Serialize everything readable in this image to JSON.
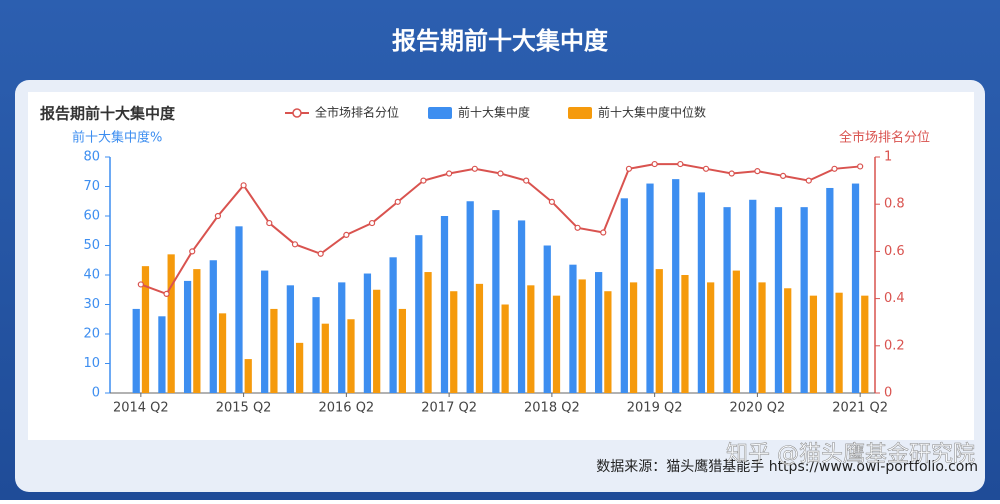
{
  "header": {
    "title": "报告期前十大集中度"
  },
  "chart_data": {
    "type": "bar",
    "title": "报告期前十大集中度",
    "ylabel": "前十大集中度%",
    "y2label": "全市场排名分位",
    "categories": [
      "2014 Q2",
      null,
      null,
      null,
      "2015 Q2",
      null,
      null,
      null,
      "2016 Q2",
      null,
      null,
      null,
      "2017 Q2",
      null,
      null,
      null,
      "2018 Q2",
      null,
      null,
      null,
      "2019 Q2",
      null,
      null,
      null,
      "2020 Q2",
      null,
      null,
      null,
      "2021 Q2"
    ],
    "series": [
      {
        "name": "全市场排名分位",
        "type": "line",
        "axis": "y2",
        "color": "#d9534f",
        "values": [
          0.46,
          0.42,
          0.6,
          0.75,
          0.88,
          0.72,
          0.63,
          0.59,
          0.67,
          0.72,
          0.81,
          0.9,
          0.93,
          0.95,
          0.93,
          0.9,
          0.81,
          0.7,
          0.68,
          0.95,
          0.97,
          0.97,
          0.95,
          0.93,
          0.94,
          0.92,
          0.9,
          0.95,
          0.96
        ]
      },
      {
        "name": "前十大集中度",
        "type": "bar",
        "color": "#3d8ef0",
        "values": [
          28.5,
          26,
          38,
          45,
          56.5,
          41.5,
          36.5,
          32.5,
          37.5,
          40.5,
          46,
          53.5,
          60,
          65,
          62,
          58.5,
          50,
          43.5,
          41,
          66,
          71,
          72.5,
          68,
          63,
          65.5,
          63,
          63,
          69.5,
          71
        ]
      },
      {
        "name": "前十大集中度中位数",
        "type": "bar",
        "color": "#f59a0c",
        "values": [
          43,
          47,
          42,
          27,
          11.5,
          28.5,
          17,
          23.5,
          25,
          35,
          28.5,
          41,
          34.5,
          37,
          30,
          36.5,
          33,
          38.5,
          34.5,
          37.5,
          42,
          40,
          37.5,
          41.5,
          37.5,
          35.5,
          33,
          34,
          33
        ]
      }
    ],
    "ylim": [
      0,
      80
    ],
    "yticks": [
      0,
      10,
      20,
      30,
      40,
      50,
      60,
      70,
      80
    ],
    "y2lim": [
      0,
      1
    ],
    "y2ticks": [
      0,
      0.2,
      0.4,
      0.6,
      0.8,
      1
    ],
    "y_color": "#3d8ef0",
    "y2_color": "#d9534f"
  },
  "source": "数据来源：猫头鹰猎基能手 https://www.owl-portfolio.com",
  "watermark": "知乎 @猫头鹰基金研究院"
}
